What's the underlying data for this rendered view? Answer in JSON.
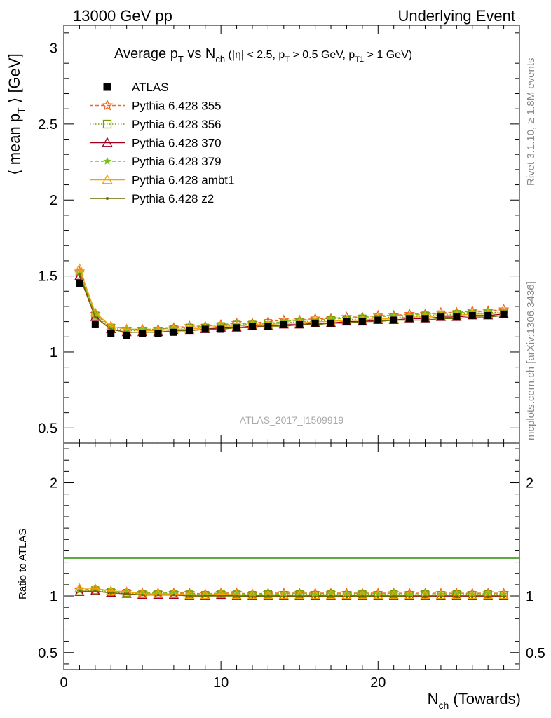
{
  "header": {
    "left": "13000 GeV pp",
    "right": "Underlying Event"
  },
  "side_labels": {
    "rivet": "Rivet 3.1.10, ≥ 1.8M events",
    "mcplots": "mcplots.cern.ch [arXiv:1306.3436]"
  },
  "watermark": "ATLAS_2017_I1509919",
  "colors": {
    "ATLAS": "#000000",
    "p355": "#f26522",
    "p356": "#7a9a01",
    "p370": "#a0001e",
    "p379": "#7bbf1e",
    "ambt1": "#f5a300",
    "z2": "#6b6b00"
  },
  "chart_data": {
    "type": "line",
    "title": {
      "prefix": "Average p",
      "sub1": "T",
      "mid": " vs N",
      "sub2": "ch",
      "cut_a": " (|η| < 2.5, p",
      "cut_a_sub": "T",
      "cut_b": " > 0.5 GeV, p",
      "cut_b_sub": "T1",
      "cut_c": " > 1 GeV)"
    },
    "ylabel": {
      "pre": "⟨ mean p",
      "sub": "T",
      "post": " ⟩ [GeV]"
    },
    "xlabel": {
      "pre": "N",
      "sub": "ch",
      "post": " (Towards)"
    },
    "ratio_ylabel": "Ratio to ATLAS",
    "xlim": [
      0,
      29
    ],
    "ylim": [
      0.4,
      3.15
    ],
    "ratio_ylim": [
      0.35,
      2.35
    ],
    "x_ticks": [
      "0",
      "10",
      "20"
    ],
    "y_ticks": [
      "0.5",
      "1",
      "1.5",
      "2",
      "2.5",
      "3"
    ],
    "ratio_ticks": [
      "0.5",
      "1",
      "2"
    ],
    "x": [
      1,
      2,
      3,
      4,
      5,
      6,
      7,
      8,
      9,
      10,
      11,
      12,
      13,
      14,
      15,
      16,
      17,
      18,
      19,
      20,
      21,
      22,
      23,
      24,
      25,
      26,
      27,
      28
    ],
    "series": [
      {
        "name": "ATLAS",
        "key": "ATLAS",
        "style": "data",
        "values": [
          1.45,
          1.18,
          1.12,
          1.11,
          1.12,
          1.12,
          1.13,
          1.14,
          1.15,
          1.15,
          1.16,
          1.17,
          1.17,
          1.18,
          1.18,
          1.19,
          1.19,
          1.2,
          1.2,
          1.21,
          1.21,
          1.22,
          1.22,
          1.23,
          1.23,
          1.24,
          1.24,
          1.25
        ]
      },
      {
        "name": "Pythia 6.428 355",
        "key": "p355",
        "style": "dash",
        "marker": "star",
        "values": [
          1.53,
          1.25,
          1.17,
          1.15,
          1.15,
          1.15,
          1.16,
          1.17,
          1.17,
          1.18,
          1.19,
          1.19,
          1.2,
          1.21,
          1.21,
          1.22,
          1.22,
          1.23,
          1.23,
          1.24,
          1.24,
          1.25,
          1.25,
          1.26,
          1.26,
          1.27,
          1.27,
          1.28
        ]
      },
      {
        "name": "Pythia 6.428 356",
        "key": "p356",
        "style": "dot",
        "marker": "square",
        "values": [
          1.51,
          1.24,
          1.16,
          1.14,
          1.14,
          1.14,
          1.15,
          1.16,
          1.16,
          1.17,
          1.18,
          1.18,
          1.19,
          1.19,
          1.2,
          1.2,
          1.21,
          1.21,
          1.22,
          1.22,
          1.23,
          1.23,
          1.24,
          1.24,
          1.25,
          1.25,
          1.26,
          1.26
        ]
      },
      {
        "name": "Pythia 6.428 370",
        "key": "p370",
        "style": "solid",
        "marker": "triangle",
        "values": [
          1.5,
          1.23,
          1.15,
          1.13,
          1.13,
          1.13,
          1.14,
          1.14,
          1.15,
          1.16,
          1.16,
          1.17,
          1.17,
          1.18,
          1.18,
          1.19,
          1.19,
          1.2,
          1.2,
          1.21,
          1.21,
          1.22,
          1.22,
          1.23,
          1.23,
          1.24,
          1.24,
          1.25
        ]
      },
      {
        "name": "Pythia 6.428 379",
        "key": "p379",
        "style": "dash",
        "marker": "star-small",
        "values": [
          1.52,
          1.25,
          1.17,
          1.15,
          1.15,
          1.15,
          1.16,
          1.16,
          1.17,
          1.18,
          1.18,
          1.19,
          1.19,
          1.2,
          1.21,
          1.21,
          1.22,
          1.22,
          1.23,
          1.23,
          1.24,
          1.24,
          1.25,
          1.25,
          1.26,
          1.26,
          1.27,
          1.27
        ]
      },
      {
        "name": "Pythia 6.428 ambt1",
        "key": "ambt1",
        "style": "solid",
        "marker": "triangle",
        "values": [
          1.55,
          1.26,
          1.17,
          1.15,
          1.14,
          1.14,
          1.15,
          1.15,
          1.16,
          1.17,
          1.17,
          1.18,
          1.18,
          1.19,
          1.19,
          1.2,
          1.2,
          1.21,
          1.21,
          1.22,
          1.22,
          1.23,
          1.23,
          1.24,
          1.24,
          1.25,
          1.25,
          1.26
        ]
      },
      {
        "name": "Pythia 6.428 z2",
        "key": "z2",
        "style": "solid",
        "marker": "dot",
        "values": [
          1.51,
          1.23,
          1.15,
          1.13,
          1.13,
          1.13,
          1.14,
          1.14,
          1.15,
          1.15,
          1.16,
          1.16,
          1.17,
          1.17,
          1.18,
          1.18,
          1.19,
          1.19,
          1.2,
          1.2,
          1.21,
          1.21,
          1.21,
          1.22,
          1.22,
          1.23,
          1.23,
          1.24
        ]
      }
    ]
  }
}
